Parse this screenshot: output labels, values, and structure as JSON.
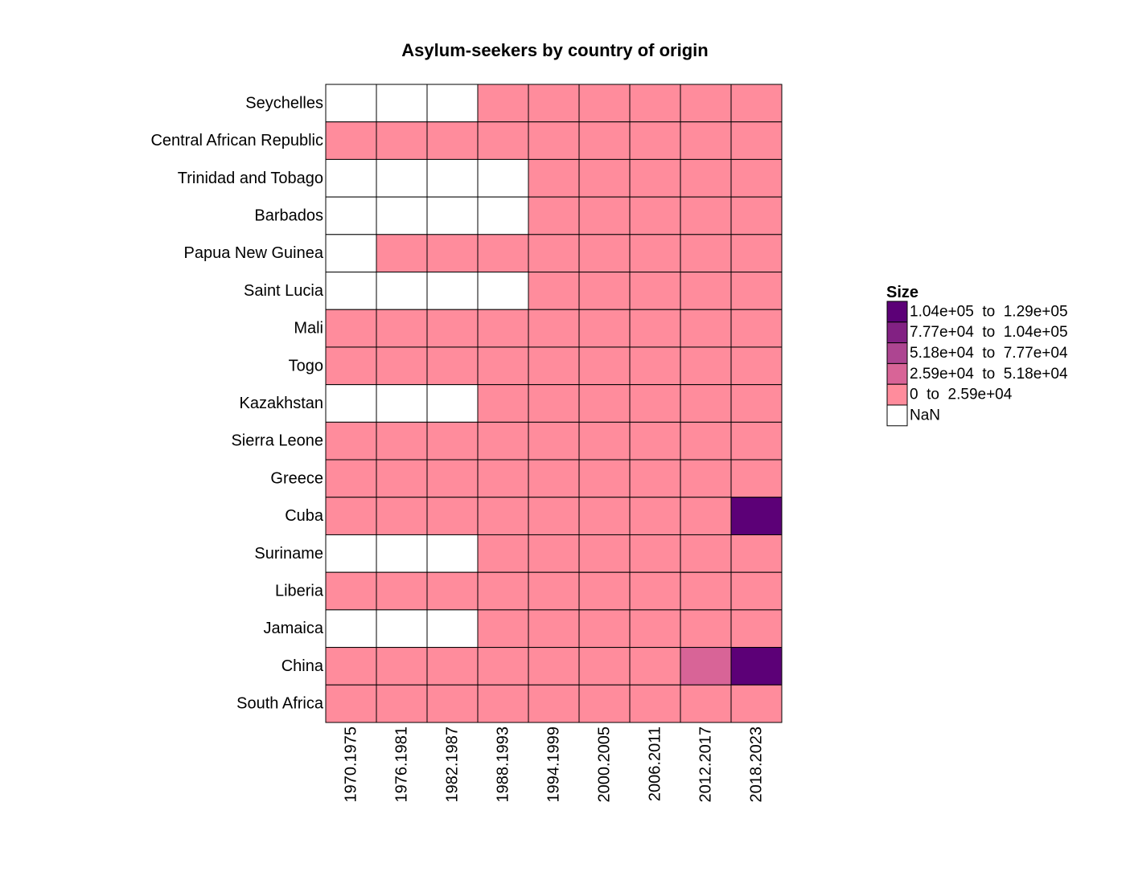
{
  "chart_data": {
    "type": "heatmap",
    "title": "Asylum-seekers by country of origin",
    "rows": [
      "Seychelles",
      "Central African Republic",
      "Trinidad and Tobago",
      "Barbados",
      "Papua New Guinea",
      "Saint Lucia",
      "Mali",
      "Togo",
      "Kazakhstan",
      "Sierra Leone",
      "Greece",
      "Cuba",
      "Suriname",
      "Liberia",
      "Jamaica",
      "China",
      "South Africa"
    ],
    "columns": [
      "1970.1975",
      "1976.1981",
      "1982.1987",
      "1988.1993",
      "1994.1999",
      "2000.2005",
      "2006.2011",
      "2012.2017",
      "2018.2023"
    ],
    "cells": [
      [
        "NaN",
        "NaN",
        "NaN",
        "0 to 2.59e+04",
        "0 to 2.59e+04",
        "0 to 2.59e+04",
        "0 to 2.59e+04",
        "0 to 2.59e+04",
        "0 to 2.59e+04"
      ],
      [
        "0 to 2.59e+04",
        "0 to 2.59e+04",
        "0 to 2.59e+04",
        "0 to 2.59e+04",
        "0 to 2.59e+04",
        "0 to 2.59e+04",
        "0 to 2.59e+04",
        "0 to 2.59e+04",
        "0 to 2.59e+04"
      ],
      [
        "NaN",
        "NaN",
        "NaN",
        "NaN",
        "0 to 2.59e+04",
        "0 to 2.59e+04",
        "0 to 2.59e+04",
        "0 to 2.59e+04",
        "0 to 2.59e+04"
      ],
      [
        "NaN",
        "NaN",
        "NaN",
        "NaN",
        "0 to 2.59e+04",
        "0 to 2.59e+04",
        "0 to 2.59e+04",
        "0 to 2.59e+04",
        "0 to 2.59e+04"
      ],
      [
        "NaN",
        "0 to 2.59e+04",
        "0 to 2.59e+04",
        "0 to 2.59e+04",
        "0 to 2.59e+04",
        "0 to 2.59e+04",
        "0 to 2.59e+04",
        "0 to 2.59e+04",
        "0 to 2.59e+04"
      ],
      [
        "NaN",
        "NaN",
        "NaN",
        "NaN",
        "0 to 2.59e+04",
        "0 to 2.59e+04",
        "0 to 2.59e+04",
        "0 to 2.59e+04",
        "0 to 2.59e+04"
      ],
      [
        "0 to 2.59e+04",
        "0 to 2.59e+04",
        "0 to 2.59e+04",
        "0 to 2.59e+04",
        "0 to 2.59e+04",
        "0 to 2.59e+04",
        "0 to 2.59e+04",
        "0 to 2.59e+04",
        "0 to 2.59e+04"
      ],
      [
        "0 to 2.59e+04",
        "0 to 2.59e+04",
        "0 to 2.59e+04",
        "0 to 2.59e+04",
        "0 to 2.59e+04",
        "0 to 2.59e+04",
        "0 to 2.59e+04",
        "0 to 2.59e+04",
        "0 to 2.59e+04"
      ],
      [
        "NaN",
        "NaN",
        "NaN",
        "0 to 2.59e+04",
        "0 to 2.59e+04",
        "0 to 2.59e+04",
        "0 to 2.59e+04",
        "0 to 2.59e+04",
        "0 to 2.59e+04"
      ],
      [
        "0 to 2.59e+04",
        "0 to 2.59e+04",
        "0 to 2.59e+04",
        "0 to 2.59e+04",
        "0 to 2.59e+04",
        "0 to 2.59e+04",
        "0 to 2.59e+04",
        "0 to 2.59e+04",
        "0 to 2.59e+04"
      ],
      [
        "0 to 2.59e+04",
        "0 to 2.59e+04",
        "0 to 2.59e+04",
        "0 to 2.59e+04",
        "0 to 2.59e+04",
        "0 to 2.59e+04",
        "0 to 2.59e+04",
        "0 to 2.59e+04",
        "0 to 2.59e+04"
      ],
      [
        "0 to 2.59e+04",
        "0 to 2.59e+04",
        "0 to 2.59e+04",
        "0 to 2.59e+04",
        "0 to 2.59e+04",
        "0 to 2.59e+04",
        "0 to 2.59e+04",
        "0 to 2.59e+04",
        "1.04e+05 to 1.29e+05"
      ],
      [
        "NaN",
        "NaN",
        "NaN",
        "0 to 2.59e+04",
        "0 to 2.59e+04",
        "0 to 2.59e+04",
        "0 to 2.59e+04",
        "0 to 2.59e+04",
        "0 to 2.59e+04"
      ],
      [
        "0 to 2.59e+04",
        "0 to 2.59e+04",
        "0 to 2.59e+04",
        "0 to 2.59e+04",
        "0 to 2.59e+04",
        "0 to 2.59e+04",
        "0 to 2.59e+04",
        "0 to 2.59e+04",
        "0 to 2.59e+04"
      ],
      [
        "NaN",
        "NaN",
        "NaN",
        "0 to 2.59e+04",
        "0 to 2.59e+04",
        "0 to 2.59e+04",
        "0 to 2.59e+04",
        "0 to 2.59e+04",
        "0 to 2.59e+04"
      ],
      [
        "0 to 2.59e+04",
        "0 to 2.59e+04",
        "0 to 2.59e+04",
        "0 to 2.59e+04",
        "0 to 2.59e+04",
        "0 to 2.59e+04",
        "0 to 2.59e+04",
        "2.59e+04 to 5.18e+04",
        "1.04e+05 to 1.29e+05"
      ],
      [
        "0 to 2.59e+04",
        "0 to 2.59e+04",
        "0 to 2.59e+04",
        "0 to 2.59e+04",
        "0 to 2.59e+04",
        "0 to 2.59e+04",
        "0 to 2.59e+04",
        "0 to 2.59e+04",
        "0 to 2.59e+04"
      ]
    ],
    "legend": {
      "title": "Size",
      "placement": "right",
      "entries": [
        {
          "label": "1.04e+05  to  1.29e+05",
          "color": "#5c0077"
        },
        {
          "label": "7.77e+04  to  1.04e+05",
          "color": "#822183"
        },
        {
          "label": "5.18e+04  to  7.77e+04",
          "color": "#ad4591"
        },
        {
          "label": "2.59e+04  to  5.18e+04",
          "color": "#d86497"
        },
        {
          "label": "0  to  2.59e+04",
          "color": "#ff8c9c"
        },
        {
          "label": "NaN",
          "color": "#ffffff"
        }
      ]
    },
    "category_colors": {
      "1.04e+05 to 1.29e+05": "#5c0077",
      "7.77e+04 to 1.04e+05": "#822183",
      "5.18e+04 to 7.77e+04": "#ad4591",
      "2.59e+04 to 5.18e+04": "#d86497",
      "0 to 2.59e+04": "#ff8c9c",
      "NaN": "#ffffff"
    }
  }
}
